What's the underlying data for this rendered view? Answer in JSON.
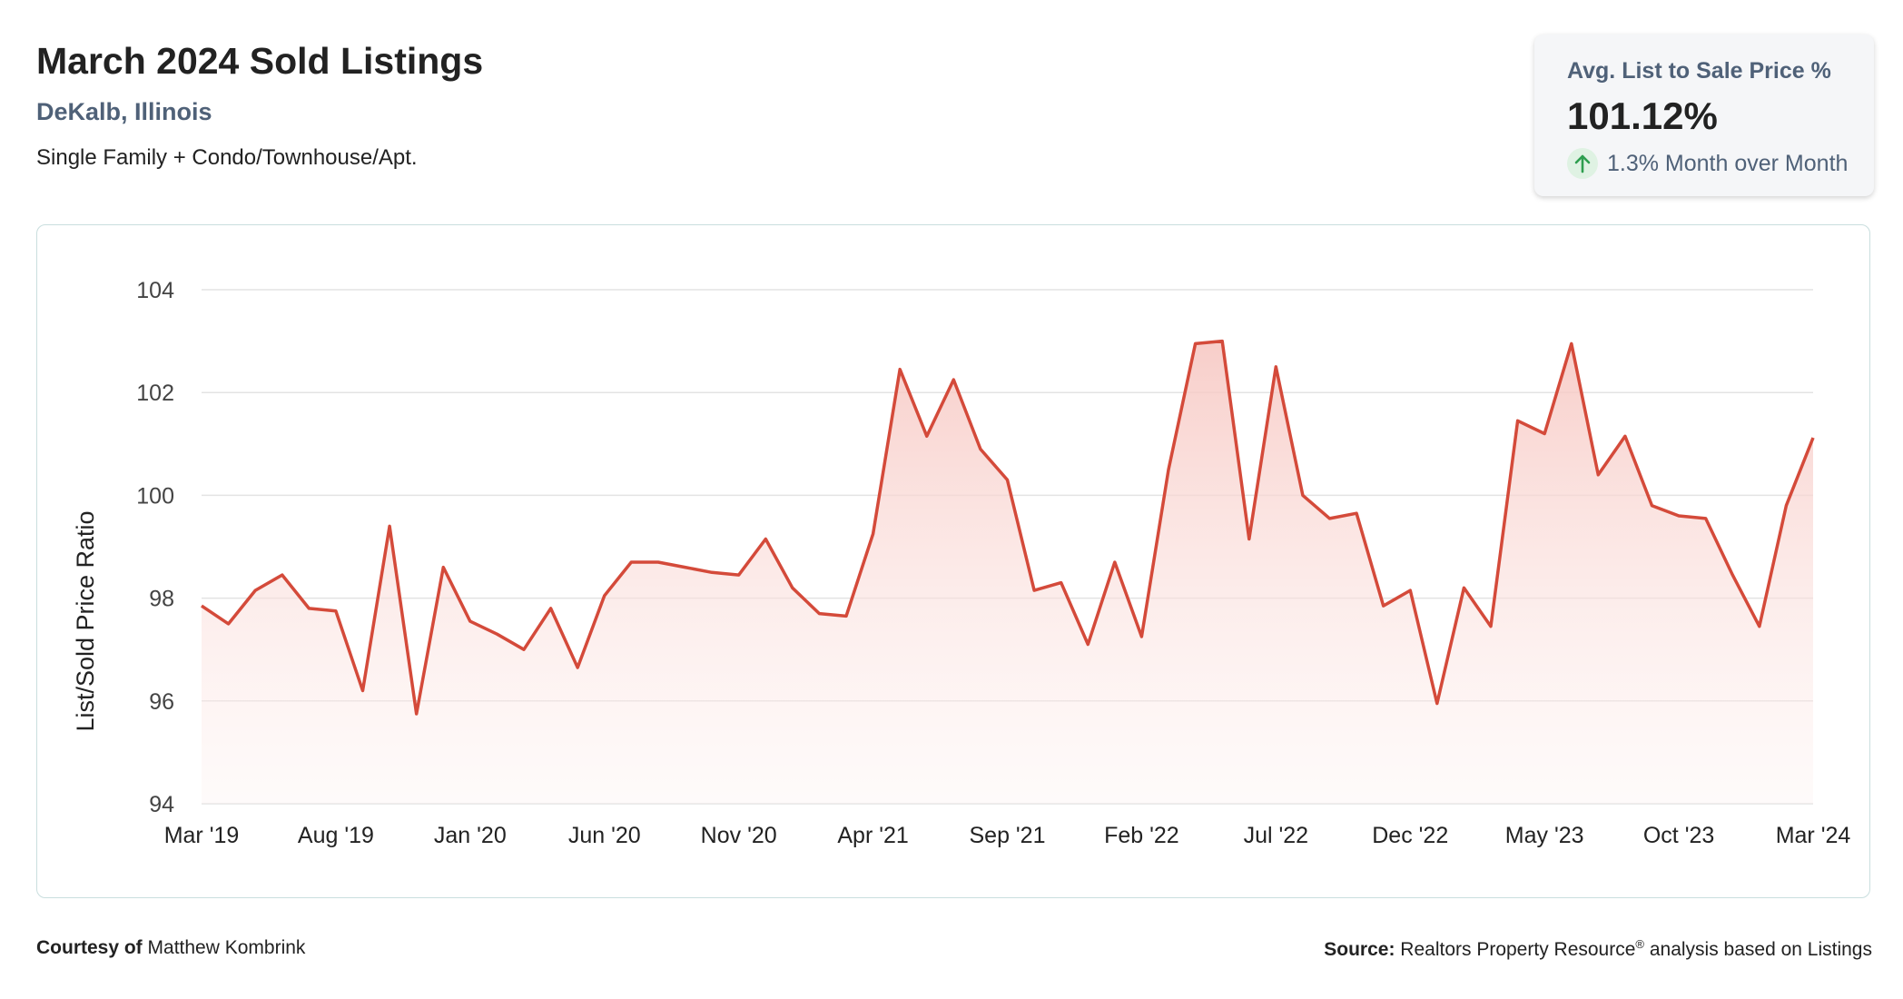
{
  "header": {
    "title": "March 2024 Sold Listings",
    "location": "DeKalb, Illinois",
    "property_types": "Single Family + Condo/Townhouse/Apt."
  },
  "kpi": {
    "label": "Avg. List to Sale Price %",
    "value": "101.12%",
    "change": "1.3% Month over Month",
    "direction_icon": "arrow-up-icon",
    "change_color": "#2e9e4f"
  },
  "footer": {
    "courtesy_prefix": "Courtesy of",
    "courtesy_name": "Matthew Kombrink",
    "source_prefix": "Source:",
    "source_text": "Realtors Property Resource",
    "source_mark": "®",
    "source_suffix": " analysis based on Listings"
  },
  "colors": {
    "line": "#d44a3a",
    "fill_top": "#f7c8c3",
    "grid": "#e3e3e3",
    "accent_text": "#4f6178"
  },
  "chart_data": {
    "type": "area",
    "ylabel": "List/Sold Price Ratio",
    "xlabel": "",
    "ylim": [
      94,
      104
    ],
    "yticks": [
      94,
      96,
      98,
      100,
      102,
      104
    ],
    "xtick_labels": [
      "Mar '19",
      "Aug '19",
      "Jan '20",
      "Jun '20",
      "Nov '20",
      "Apr '21",
      "Sep '21",
      "Feb '22",
      "Jul '22",
      "Dec '22",
      "May '23",
      "Oct '23",
      "Mar '24"
    ],
    "grid": true,
    "categories": [
      "2019-03",
      "2019-04",
      "2019-05",
      "2019-06",
      "2019-07",
      "2019-08",
      "2019-09",
      "2019-10",
      "2019-11",
      "2019-12",
      "2020-01",
      "2020-02",
      "2020-03",
      "2020-04",
      "2020-05",
      "2020-06",
      "2020-07",
      "2020-08",
      "2020-09",
      "2020-10",
      "2020-11",
      "2020-12",
      "2021-01",
      "2021-02",
      "2021-03",
      "2021-04",
      "2021-05",
      "2021-06",
      "2021-07",
      "2021-08",
      "2021-09",
      "2021-10",
      "2021-11",
      "2021-12",
      "2022-01",
      "2022-02",
      "2022-03",
      "2022-04",
      "2022-05",
      "2022-06",
      "2022-07",
      "2022-08",
      "2022-09",
      "2022-10",
      "2022-11",
      "2022-12",
      "2023-01",
      "2023-02",
      "2023-03",
      "2023-04",
      "2023-05",
      "2023-06",
      "2023-07",
      "2023-08",
      "2023-09",
      "2023-10",
      "2023-11",
      "2023-12",
      "2024-01",
      "2024-02",
      "2024-03"
    ],
    "values": [
      97.85,
      97.5,
      98.15,
      98.45,
      97.8,
      97.75,
      96.2,
      99.4,
      95.75,
      98.6,
      97.55,
      97.3,
      97.0,
      97.8,
      96.65,
      98.05,
      98.7,
      98.7,
      98.6,
      98.5,
      98.45,
      99.15,
      98.2,
      97.7,
      97.65,
      99.25,
      102.45,
      101.15,
      102.25,
      100.9,
      100.3,
      98.15,
      98.3,
      97.1,
      98.7,
      97.25,
      100.5,
      102.95,
      103.0,
      99.15,
      102.5,
      100.0,
      99.55,
      99.65,
      97.85,
      98.15,
      95.95,
      98.2,
      97.45,
      101.45,
      101.2,
      102.95,
      100.4,
      101.15,
      99.8,
      99.6,
      99.55,
      98.45,
      97.45,
      99.8,
      101.12
    ]
  }
}
